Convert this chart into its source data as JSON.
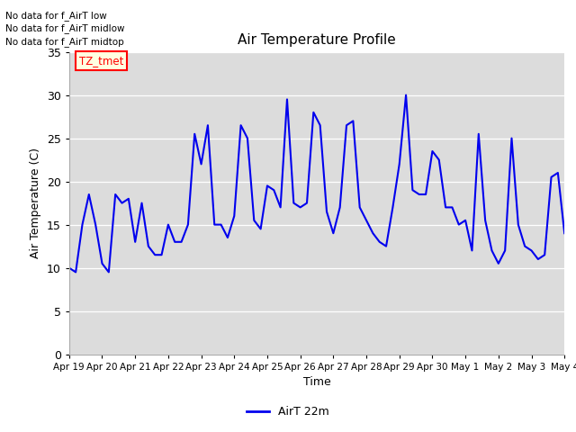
{
  "title": "Air Temperature Profile",
  "xlabel": "Time",
  "ylabel": "Air Temperature (C)",
  "ylim": [
    0,
    35
  ],
  "yticks": [
    0,
    5,
    10,
    15,
    20,
    25,
    30,
    35
  ],
  "line_color": "#0000EE",
  "line_width": 1.5,
  "bg_color": "#DCDCDC",
  "fig_bg": "#FFFFFF",
  "no_data_texts": [
    "No data for f_AirT low",
    "No data for f_AirT midlow",
    "No data for f_AirT midtop"
  ],
  "tz_tmet_label": "TZ_tmet",
  "legend_label": "AirT 22m",
  "xtick_labels": [
    "Apr 19",
    "Apr 20",
    "Apr 21",
    "Apr 22",
    "Apr 23",
    "Apr 24",
    "Apr 25",
    "Apr 26",
    "Apr 27",
    "Apr 28",
    "Apr 29",
    "Apr 30",
    "May 1",
    "May 2",
    "May 3",
    "May 4"
  ],
  "temperature": [
    10.0,
    9.5,
    15.0,
    18.5,
    15.0,
    10.5,
    9.5,
    18.5,
    17.5,
    18.0,
    13.0,
    17.5,
    12.5,
    11.5,
    11.5,
    15.0,
    13.0,
    13.0,
    15.0,
    25.5,
    22.0,
    26.5,
    15.0,
    15.0,
    13.5,
    16.0,
    26.5,
    25.0,
    15.5,
    14.5,
    19.5,
    19.0,
    17.0,
    29.5,
    17.5,
    17.0,
    17.5,
    28.0,
    26.5,
    16.5,
    14.0,
    17.0,
    26.5,
    27.0,
    17.0,
    15.5,
    14.0,
    13.0,
    12.5,
    17.0,
    22.0,
    30.0,
    19.0,
    18.5,
    18.5,
    23.5,
    22.5,
    17.0,
    17.0,
    15.0,
    15.5,
    12.0,
    25.5,
    15.5,
    12.0,
    10.5,
    12.0,
    25.0,
    15.0,
    12.5,
    12.0,
    11.0,
    11.5,
    20.5,
    21.0,
    14.0
  ]
}
